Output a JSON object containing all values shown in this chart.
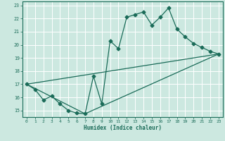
{
  "xlabel": "Humidex (Indice chaleur)",
  "ylabel": "",
  "xlim": [
    -0.5,
    23.5
  ],
  "ylim": [
    14.5,
    23.3
  ],
  "xticks": [
    0,
    1,
    2,
    3,
    4,
    5,
    6,
    7,
    8,
    9,
    10,
    11,
    12,
    13,
    14,
    15,
    16,
    17,
    18,
    19,
    20,
    21,
    22,
    23
  ],
  "yticks": [
    15,
    16,
    17,
    18,
    19,
    20,
    21,
    22,
    23
  ],
  "bg_color": "#cce8e0",
  "line_color": "#1a6b58",
  "grid_color": "#ffffff",
  "line1_x": [
    0,
    1,
    2,
    3,
    4,
    5,
    6,
    7,
    8,
    9,
    10,
    11,
    12,
    13,
    14,
    15,
    16,
    17,
    18,
    19,
    20,
    21,
    22,
    23
  ],
  "line1_y": [
    17.0,
    16.6,
    15.8,
    16.1,
    15.5,
    15.0,
    14.8,
    14.75,
    17.6,
    15.5,
    20.3,
    19.7,
    22.1,
    22.3,
    22.5,
    21.5,
    22.1,
    22.8,
    21.2,
    20.6,
    20.1,
    19.8,
    19.5,
    19.3
  ],
  "line2_x": [
    0,
    23
  ],
  "line2_y": [
    17.0,
    19.3
  ],
  "line3_x": [
    0,
    7,
    23
  ],
  "line3_y": [
    17.0,
    14.75,
    19.3
  ]
}
